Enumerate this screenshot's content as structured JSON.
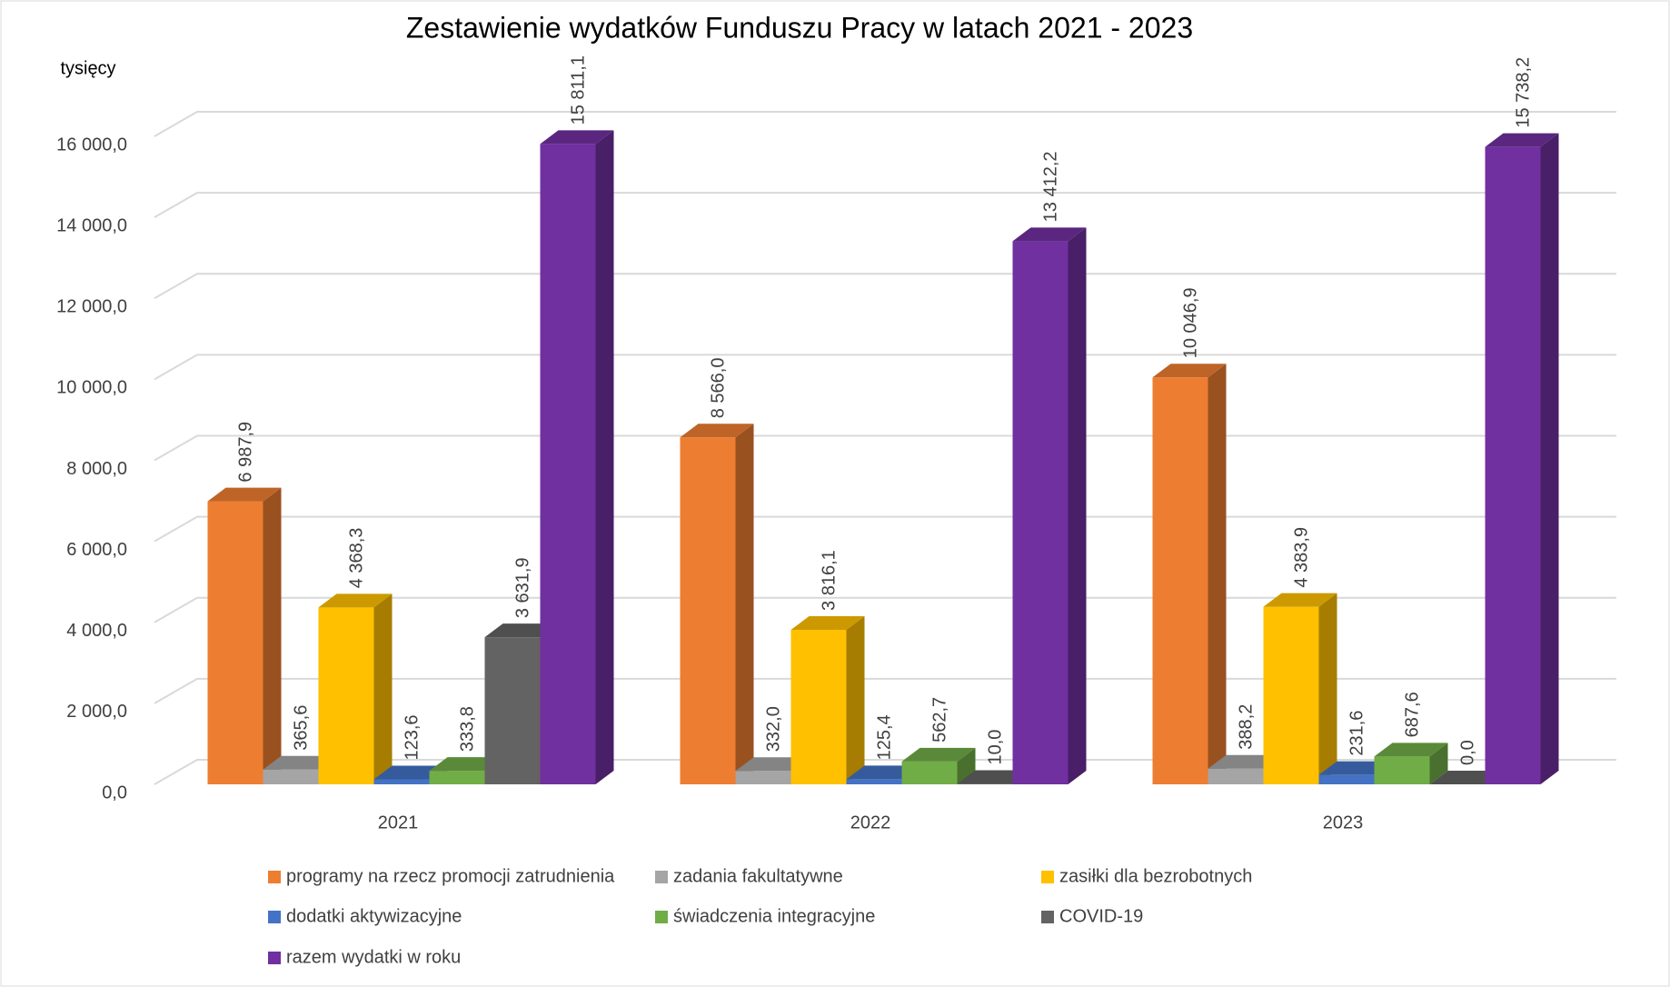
{
  "chart_data": {
    "type": "bar3d",
    "title": "Zestawienie wydatków Funduszu Pracy w latach 2021 - 2023",
    "ylabel": "tysięcy",
    "categories": [
      "2021",
      "2022",
      "2023"
    ],
    "series": [
      {
        "name": "programy na rzecz promocji zatrudnienia",
        "color": "#ED7D31",
        "values": [
          6987.9,
          8566.0,
          10046.9
        ],
        "value_labels": [
          "6 987,9",
          "8 566,0",
          "10 046,9"
        ]
      },
      {
        "name": "zadania fakultatywne",
        "color": "#A5A5A5",
        "values": [
          365.6,
          332.0,
          388.2
        ],
        "value_labels": [
          "365,6",
          "332,0",
          "388,2"
        ]
      },
      {
        "name": "zasiłki dla bezrobotnych",
        "color": "#FFC000",
        "values": [
          4368.3,
          3816.1,
          4383.9
        ],
        "value_labels": [
          "4 368,3",
          "3 816,1",
          "4 383,9"
        ]
      },
      {
        "name": "dodatki aktywizacyjne",
        "color": "#4472C4",
        "values": [
          123.6,
          125.4,
          231.6
        ],
        "value_labels": [
          "123,6",
          "125,4",
          "231,6"
        ]
      },
      {
        "name": "świadczenia integracyjne",
        "color": "#70AD47",
        "values": [
          333.8,
          562.7,
          687.6
        ],
        "value_labels": [
          "333,8",
          "562,7",
          "687,6"
        ]
      },
      {
        "name": "COVID-19",
        "color": "#636363",
        "values": [
          3631.9,
          10.0,
          0.0
        ],
        "value_labels": [
          "3 631,9",
          "10,0",
          "0,0"
        ]
      },
      {
        "name": "razem wydatki w roku",
        "color": "#7030A0",
        "values": [
          15811.1,
          13412.2,
          15738.2
        ],
        "value_labels": [
          "15 811,1",
          "13 412,2",
          "15 738,2"
        ]
      }
    ],
    "ylim": [
      0,
      16000
    ],
    "yticks": [
      {
        "value": 0,
        "label": "0,0"
      },
      {
        "value": 2000,
        "label": "2 000,0"
      },
      {
        "value": 4000,
        "label": "4 000,0"
      },
      {
        "value": 6000,
        "label": "6 000,0"
      },
      {
        "value": 8000,
        "label": "8 000,0"
      },
      {
        "value": 10000,
        "label": "10 000,0"
      },
      {
        "value": 12000,
        "label": "12 000,0"
      },
      {
        "value": 14000,
        "label": "14 000,0"
      },
      {
        "value": 16000,
        "label": "16 000,0"
      }
    ],
    "grid": true
  }
}
